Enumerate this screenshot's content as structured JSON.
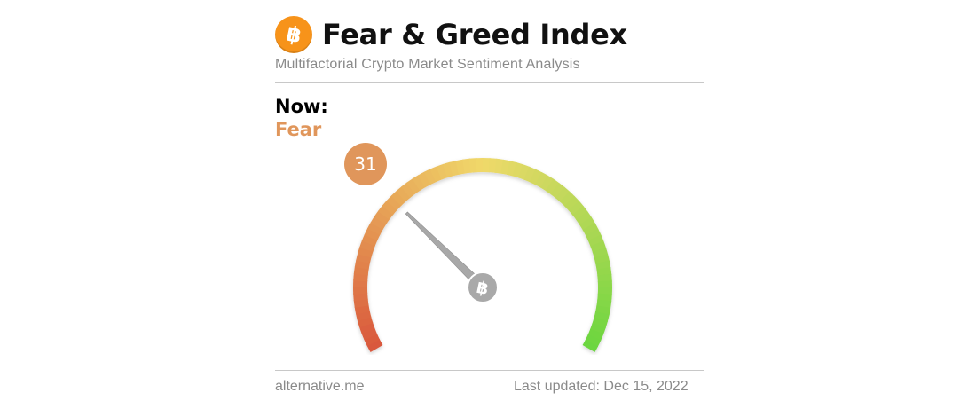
{
  "header": {
    "logo_glyph": "฿",
    "title": "Fear & Greed Index",
    "subtitle": "Multifactorial Crypto Market Sentiment Analysis"
  },
  "now": {
    "label": "Now:",
    "classification": "Fear"
  },
  "footer": {
    "source": "alternative.me",
    "last_updated": "Last updated: Dec 15, 2022"
  },
  "colors": {
    "accent": "#e0965b",
    "bitcoin": "#f7931a",
    "gauge_low": "#d9563c",
    "gauge_mid": "#f0d96a",
    "gauge_high": "#6ad63e",
    "needle": "#a8a8a8"
  },
  "chart_data": {
    "type": "gauge",
    "value": 31,
    "value_label": "31",
    "range": [
      0,
      100
    ],
    "classification": "Fear",
    "hub_glyph": "฿"
  }
}
